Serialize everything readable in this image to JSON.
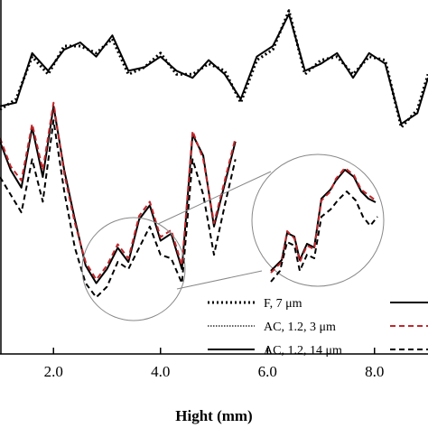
{
  "chart_data": {
    "type": "line",
    "xlabel": "Hight (mm)",
    "xlim": [
      1.0,
      9.0
    ],
    "x_ticks": [
      "2.0",
      "4.0",
      "6.0",
      "8.0"
    ],
    "x_tick_values": [
      2.0,
      4.0,
      6.0,
      8.0
    ],
    "ylim": [
      0,
      100
    ],
    "grid": false,
    "legend_position": "bottom-right",
    "legend": [
      {
        "label": "F, 7 μm",
        "style": "dotted-thick",
        "color": "#000000"
      },
      {
        "label": "AC, 1.2, 3 μm",
        "style": "dotted-thin",
        "color": "#000000"
      },
      {
        "label": "AC, 1.2, 14 μm",
        "style": "solid",
        "color": "#000000"
      },
      {
        "label": "",
        "style": "solid",
        "color": "#000000"
      },
      {
        "label": "",
        "style": "dashed",
        "color": "#c0282d"
      },
      {
        "label": "",
        "style": "dashed",
        "color": "#000000"
      }
    ],
    "series": [
      {
        "style": "solid",
        "color": "#000000",
        "x": [
          1.0,
          1.3,
          1.6,
          1.9,
          2.2,
          2.5,
          2.8,
          3.1,
          3.4,
          3.7,
          4.0,
          4.3,
          4.6,
          4.9,
          5.2,
          5.5,
          5.8,
          6.1,
          6.4,
          6.7,
          7.0,
          7.3,
          7.6,
          7.9,
          8.2,
          8.5,
          8.8,
          9.0
        ],
        "values": [
          70,
          71,
          85,
          80,
          86,
          88,
          84,
          90,
          80,
          81,
          84,
          80,
          78,
          83,
          79,
          72,
          84,
          87,
          96,
          80,
          82,
          85,
          78,
          85,
          82,
          65,
          68,
          78
        ]
      },
      {
        "style": "dotted-thick",
        "color": "#000000",
        "x": [
          1.0,
          1.3,
          1.6,
          1.9,
          2.2,
          2.5,
          2.8,
          3.1,
          3.4,
          3.7,
          4.0,
          4.3,
          4.6,
          4.9,
          5.2,
          5.5,
          5.8,
          6.1,
          6.4,
          6.7,
          7.0,
          7.3,
          7.6,
          7.9,
          8.2,
          8.5,
          8.8,
          9.0
        ],
        "values": [
          69,
          72,
          84,
          79,
          87,
          87,
          85,
          89,
          79,
          81,
          85,
          79,
          79,
          82,
          80,
          71,
          83,
          86,
          97,
          79,
          83,
          84,
          79,
          84,
          83,
          64,
          69,
          79
        ]
      },
      {
        "style": "solid",
        "color": "#000000",
        "x": [
          1.0,
          1.2,
          1.4,
          1.6,
          1.8,
          2.0,
          2.2,
          2.4,
          2.6,
          2.8,
          3.0,
          3.2,
          3.4,
          3.6,
          3.8,
          4.0,
          4.2,
          4.4,
          4.6,
          4.8,
          5.0,
          5.2,
          5.4
        ],
        "values": [
          60,
          52,
          47,
          64,
          50,
          70,
          52,
          38,
          25,
          20,
          24,
          30,
          26,
          38,
          42,
          32,
          34,
          24,
          62,
          56,
          36,
          48,
          60
        ]
      },
      {
        "style": "dashed",
        "color": "#c0282d",
        "x": [
          1.0,
          1.2,
          1.4,
          1.6,
          1.8,
          2.0,
          2.2,
          2.4,
          2.6,
          2.8,
          3.0,
          3.2,
          3.4,
          3.6,
          3.8,
          4.0,
          4.2,
          4.4,
          4.6,
          4.8,
          5.0,
          5.2,
          5.4
        ],
        "values": [
          61,
          53,
          49,
          65,
          52,
          71,
          51,
          37,
          26,
          21,
          25,
          31,
          27,
          39,
          43,
          33,
          35,
          25,
          63,
          55,
          37,
          49,
          61
        ]
      },
      {
        "style": "dashed",
        "color": "#000000",
        "x": [
          1.0,
          1.2,
          1.4,
          1.6,
          1.8,
          2.0,
          2.2,
          2.4,
          2.6,
          2.8,
          3.0,
          3.2,
          3.4,
          3.6,
          3.8,
          4.0,
          4.2,
          4.4,
          4.6,
          4.8,
          5.0,
          5.2,
          5.4
        ],
        "values": [
          50,
          45,
          40,
          55,
          43,
          66,
          46,
          30,
          20,
          16,
          19,
          26,
          24,
          30,
          36,
          28,
          27,
          20,
          55,
          45,
          28,
          42,
          55
        ]
      }
    ]
  }
}
